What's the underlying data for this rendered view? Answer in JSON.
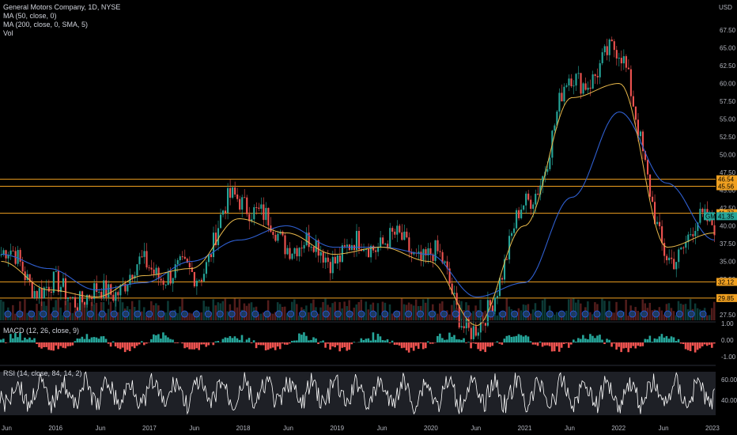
{
  "header": {
    "symbol_line": "General Motors Company, 1D, NYSE",
    "ma50_label": "MA (50, close, 0)",
    "ma200_label": "MA (200, close, 0, SMA, 5)",
    "vol_label": "Vol",
    "currency": "USD"
  },
  "indicators": {
    "macd_label": "MACD (12, 26, close, 9)",
    "rsi_label": "RSI (14, close, 84, 14, 2)"
  },
  "price_axis": {
    "ticks": [
      "67.50",
      "65.00",
      "62.50",
      "60.00",
      "57.50",
      "55.00",
      "52.50",
      "50.00",
      "47.50",
      "45.00",
      "42.50",
      "40.00",
      "37.50",
      "35.00",
      "32.50",
      "30.00",
      "27.50"
    ],
    "min": 27.5,
    "max": 67.5
  },
  "macd_axis": {
    "ticks": [
      "1.00",
      "0.00",
      "-1.00"
    ]
  },
  "rsi_axis": {
    "ticks": [
      "60.00",
      "40.00"
    ]
  },
  "time_axis": {
    "labels": [
      "Jun",
      "2016",
      "Jun",
      "2017",
      "Jun",
      "2018",
      "Jun",
      "2019",
      "Jun",
      "2020",
      "Jun",
      "2021",
      "Jun",
      "2022",
      "Jun",
      "2023"
    ]
  },
  "horizontal_levels": [
    {
      "value": "46.54",
      "price": 46.54,
      "color": "#f0a020"
    },
    {
      "value": "45.56",
      "price": 45.56,
      "color": "#f0a020"
    },
    {
      "value": "41.77",
      "price": 41.77,
      "color": "#f0a020"
    },
    {
      "value": "32.12",
      "price": 32.12,
      "color": "#f0a020"
    },
    {
      "value": "29.85",
      "price": 29.85,
      "color": "#f0a020"
    }
  ],
  "last_price": {
    "symbol": "GM",
    "value": "41.35",
    "price": 41.35,
    "color": "#26a69a"
  },
  "colors": {
    "up": "#26a69a",
    "down": "#ef5350",
    "ma50": "#e8b84a",
    "ma200": "#2f5fd0",
    "rsi": "#ffffff",
    "rsi_band": "#363a45"
  },
  "chart_data": {
    "type": "line",
    "title": "General Motors Company, 1D, NYSE",
    "x": [
      "2015-06",
      "2016-01",
      "2016-06",
      "2017-01",
      "2017-06",
      "2018-01",
      "2018-06",
      "2019-01",
      "2019-06",
      "2020-01",
      "2020-06",
      "2021-01",
      "2021-06",
      "2022-01",
      "2022-06",
      "2023-01"
    ],
    "series": [
      {
        "name": "Price",
        "values": [
          36,
          31,
          30,
          34,
          33,
          44,
          38,
          36,
          38,
          36,
          25,
          42,
          60,
          64,
          36,
          41
        ]
      },
      {
        "name": "MA (50, close, 0)",
        "values": [
          35,
          31,
          30,
          33,
          34,
          41,
          39,
          36,
          37,
          35,
          26,
          40,
          58,
          60,
          37,
          39
        ]
      },
      {
        "name": "MA (200, close, 0, SMA, 5)",
        "values": [
          36,
          34,
          31,
          32,
          35,
          38,
          40,
          37,
          37,
          36,
          30,
          32,
          44,
          56,
          46,
          38
        ]
      }
    ],
    "ylim": [
      27.5,
      67.5
    ]
  }
}
